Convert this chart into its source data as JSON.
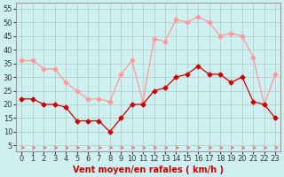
{
  "hours": [
    0,
    1,
    2,
    3,
    4,
    5,
    6,
    7,
    8,
    9,
    10,
    11,
    12,
    13,
    14,
    15,
    16,
    17,
    18,
    19,
    20,
    21,
    22,
    23
  ],
  "wind_avg": [
    22,
    22,
    20,
    20,
    19,
    14,
    14,
    14,
    10,
    15,
    20,
    20,
    25,
    26,
    30,
    31,
    34,
    31,
    31,
    28,
    30,
    21,
    20,
    15
  ],
  "wind_gust": [
    36,
    36,
    33,
    33,
    28,
    25,
    22,
    22,
    21,
    31,
    36,
    21,
    44,
    43,
    51,
    50,
    52,
    50,
    45,
    46,
    45,
    37,
    20,
    31
  ],
  "xlim": [
    -0.5,
    23.5
  ],
  "ylim": [
    3,
    57
  ],
  "yticks": [
    5,
    10,
    15,
    20,
    25,
    30,
    35,
    40,
    45,
    50,
    55
  ],
  "xticks": [
    0,
    1,
    2,
    3,
    4,
    5,
    6,
    7,
    8,
    9,
    10,
    11,
    12,
    13,
    14,
    15,
    16,
    17,
    18,
    19,
    20,
    21,
    22,
    23
  ],
  "xlabel": "Vent moyen/en rafales ( km/h )",
  "bg_color": "#cff0f0",
  "grid_color": "#b0c8c8",
  "avg_color": "#cc0000",
  "gust_color": "#ff9999",
  "arrow_color": "#dd6666",
  "xlabel_color": "#cc0000",
  "xlabel_fontsize": 7,
  "tick_fontsize": 6,
  "marker_size": 2.5,
  "linewidth": 0.9
}
